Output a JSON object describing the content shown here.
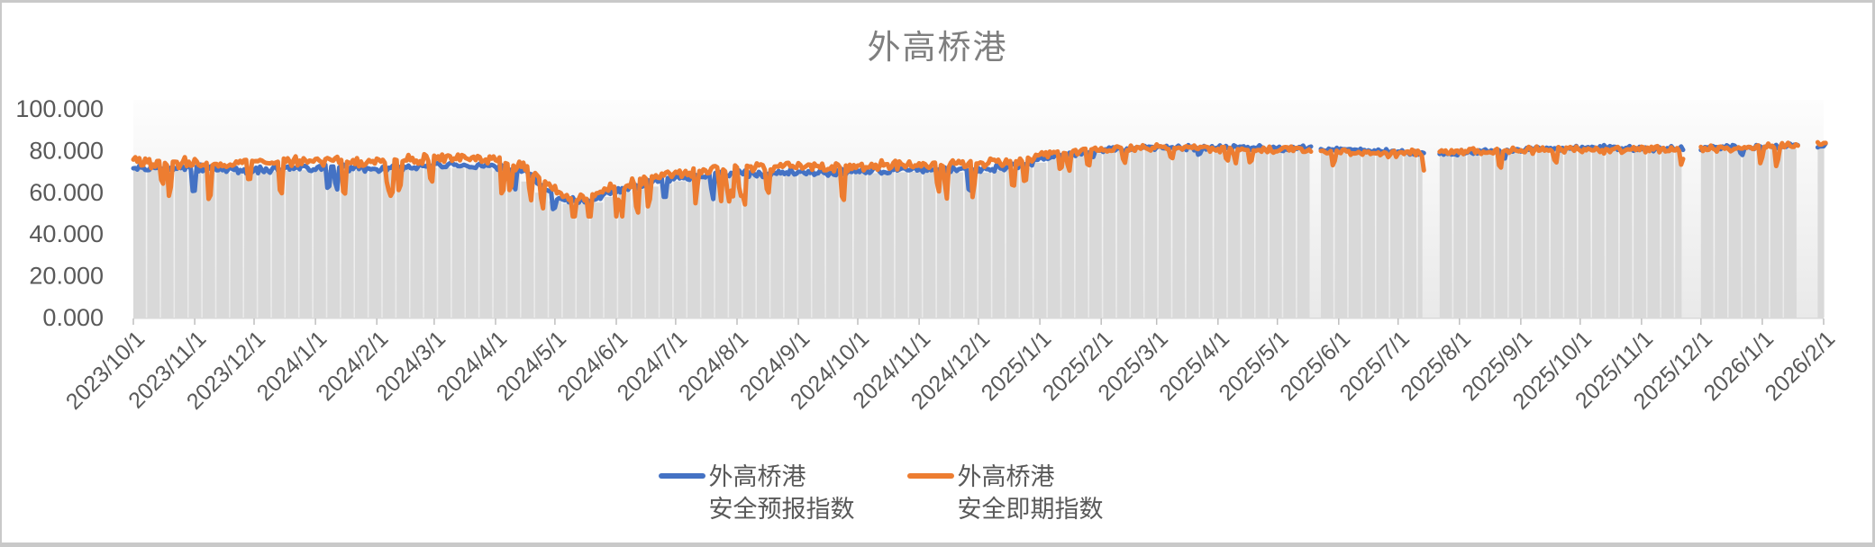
{
  "title": "外高桥港",
  "legend": [
    {
      "line1": "外高桥港",
      "line2": "安全预报指数",
      "color": "#4472C4"
    },
    {
      "line1": "外高桥港",
      "line2": "安全即期指数",
      "color": "#ED7D31"
    }
  ],
  "chart_data": {
    "type": "line",
    "title": "外高桥港",
    "xlabel": "",
    "ylabel": "",
    "ylim": [
      0,
      100
    ],
    "grid": false,
    "legend_position": "bottom",
    "y_ticks": [
      "0.000",
      "20.000",
      "40.000",
      "60.000",
      "80.000",
      "100.000"
    ],
    "y_tick_values": [
      0,
      20,
      40,
      60,
      80,
      100
    ],
    "x_ticks": [
      "2023/10/1",
      "2023/11/1",
      "2023/12/1",
      "2024/1/1",
      "2024/2/1",
      "2024/3/1",
      "2024/4/1",
      "2024/5/1",
      "2024/6/1",
      "2024/7/1",
      "2024/8/1",
      "2024/9/1",
      "2024/10/1",
      "2024/11/1",
      "2024/12/1",
      "2025/1/1",
      "2025/2/1",
      "2025/3/1",
      "2025/4/1",
      "2025/5/1",
      "2025/6/1",
      "2025/7/1",
      "2025/8/1",
      "2025/9/1",
      "2025/10/1",
      "2025/11/1",
      "2025/12/1",
      "2026/1/1",
      "2026/2/1"
    ],
    "x_tick_days": [
      0,
      31,
      61,
      92,
      123,
      152,
      183,
      213,
      244,
      274,
      305,
      336,
      366,
      397,
      427,
      458,
      489,
      517,
      548,
      578,
      609,
      639,
      670,
      701,
      731,
      762,
      792,
      823,
      854
    ],
    "axis_days": [
      0,
      855
    ],
    "era_split_day": 458,
    "data_gap_day_ranges": [
      [
        595,
        600
      ],
      [
        652,
        660
      ],
      [
        783,
        792
      ],
      [
        841,
        851
      ]
    ],
    "background_columns": {
      "color": "#D9D9D9",
      "interval_days": 7,
      "note": "weekly gray columns tracking the index level"
    },
    "series": [
      {
        "name": "外高桥港安全预报指数",
        "color": "#4472C4",
        "anchor_days": [
          0,
          31,
          61,
          92,
          123,
          152,
          183,
          198,
          215,
          228,
          244,
          274,
          305,
          336,
          366,
          397,
          427,
          450,
          458,
          489,
          517,
          548,
          578,
          609,
          639,
          670,
          701,
          731,
          762,
          792,
          823,
          855
        ],
        "anchor_values": [
          72,
          71.5,
          70.5,
          72,
          71.5,
          73,
          72.5,
          70,
          57,
          55,
          61,
          66.5,
          69,
          69.5,
          70,
          71,
          70.5,
          73,
          76.5,
          80.5,
          81.5,
          81.5,
          81.5,
          80.5,
          79.5,
          79,
          80.5,
          81.5,
          81,
          81,
          81.5,
          82.5
        ],
        "noise": {
          "amp_early": 2.4,
          "amp_late": 1.8,
          "dip_prob": 0.045,
          "dip_depth_early": 13,
          "dip_depth_late": 4
        }
      },
      {
        "name": "外高桥港安全即期指数",
        "color": "#ED7D31",
        "anchor_days": [
          0,
          31,
          61,
          92,
          123,
          152,
          183,
          198,
          215,
          228,
          244,
          274,
          305,
          336,
          366,
          397,
          427,
          450,
          458,
          489,
          517,
          548,
          578,
          609,
          639,
          670,
          701,
          731,
          762,
          792,
          823,
          855
        ],
        "anchor_values": [
          74.5,
          74,
          74,
          75,
          74.5,
          76,
          75.5,
          72,
          59,
          56.5,
          63,
          69,
          72,
          72.5,
          72.5,
          73.5,
          74,
          75.5,
          78,
          80.5,
          81.5,
          81,
          80.5,
          79.5,
          78.5,
          79.5,
          80,
          80.5,
          80.5,
          81,
          81.5,
          83
        ],
        "noise": {
          "amp_early": 3.4,
          "amp_late": 2.4,
          "dip_prob": 0.17,
          "dip_depth_early": 17,
          "dip_depth_late": 8
        }
      }
    ]
  },
  "colors": {
    "plot_bg_top": "#FDFDFD",
    "plot_bg_bottom": "#E9E9E9",
    "axis_line": "#D9D9D9",
    "tick": "#BFBFBF",
    "axis_text": "#595959",
    "title_text": "#7F7F7F",
    "canvas": "#FFFFFF",
    "page_edge": "#C9C9C9"
  }
}
